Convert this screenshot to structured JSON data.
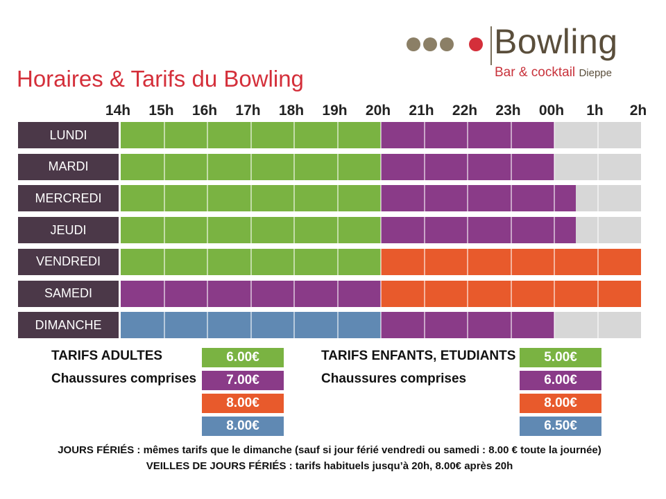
{
  "logo": {
    "word": "Bowling",
    "subtitle": "Bar & cocktail",
    "city": "Dieppe",
    "dot_colors": [
      "#8b7f66",
      "#8b7f66",
      "#8b7f66",
      "#d42f3a"
    ]
  },
  "title": "Horaires & Tarifs du Bowling",
  "hours": [
    "14h",
    "15h",
    "16h",
    "17h",
    "18h",
    "19h",
    "20h",
    "21h",
    "22h",
    "23h",
    "00h",
    "1h",
    "2h"
  ],
  "colors": {
    "green": "#7ab342",
    "purple": "#8a3b88",
    "orange": "#e85a2c",
    "blue": "#6089b3",
    "grey": "#d7d7d7",
    "day_bg": "#4b3848"
  },
  "schedule": [
    {
      "day": "LUNDI",
      "segments": [
        {
          "from": 14,
          "to": 20,
          "color": "green"
        },
        {
          "from": 20,
          "to": 24,
          "color": "purple"
        },
        {
          "from": 24,
          "to": 26,
          "color": "grey"
        }
      ]
    },
    {
      "day": "MARDI",
      "segments": [
        {
          "from": 14,
          "to": 20,
          "color": "green"
        },
        {
          "from": 20,
          "to": 24,
          "color": "purple"
        },
        {
          "from": 24,
          "to": 26,
          "color": "grey"
        }
      ]
    },
    {
      "day": "MERCREDI",
      "segments": [
        {
          "from": 14,
          "to": 20,
          "color": "green"
        },
        {
          "from": 20,
          "to": 24.5,
          "color": "purple"
        },
        {
          "from": 24.5,
          "to": 26,
          "color": "grey"
        }
      ]
    },
    {
      "day": "JEUDI",
      "segments": [
        {
          "from": 14,
          "to": 20,
          "color": "green"
        },
        {
          "from": 20,
          "to": 24.5,
          "color": "purple"
        },
        {
          "from": 24.5,
          "to": 26,
          "color": "grey"
        }
      ]
    },
    {
      "day": "VENDREDI",
      "segments": [
        {
          "from": 14,
          "to": 20,
          "color": "green"
        },
        {
          "from": 20,
          "to": 26,
          "color": "orange"
        }
      ]
    },
    {
      "day": "SAMEDI",
      "segments": [
        {
          "from": 14,
          "to": 20,
          "color": "purple"
        },
        {
          "from": 20,
          "to": 26,
          "color": "orange"
        }
      ]
    },
    {
      "day": "DIMANCHE",
      "segments": [
        {
          "from": 14,
          "to": 20,
          "color": "blue"
        },
        {
          "from": 20,
          "to": 24,
          "color": "purple"
        },
        {
          "from": 24,
          "to": 26,
          "color": "grey"
        }
      ]
    }
  ],
  "tarifs": {
    "adultes": {
      "label": "TARIFS ADULTES",
      "sublabel": "Chaussures comprises",
      "prices": [
        {
          "value": "6.00€",
          "color": "green"
        },
        {
          "value": "7.00€",
          "color": "purple"
        },
        {
          "value": "8.00€",
          "color": "orange"
        },
        {
          "value": "8.00€",
          "color": "blue"
        }
      ]
    },
    "enfants": {
      "label": "TARIFS ENFANTS, ETUDIANTS",
      "sublabel": "Chaussures comprises",
      "prices": [
        {
          "value": "5.00€",
          "color": "green"
        },
        {
          "value": "6.00€",
          "color": "purple"
        },
        {
          "value": "8.00€",
          "color": "orange"
        },
        {
          "value": "6.50€",
          "color": "blue"
        }
      ]
    }
  },
  "notes": [
    "JOURS FÉRIÉS : mêmes tarifs que le dimanche (sauf si jour férié vendredi ou samedi : 8.00 € toute la journée)",
    "VEILLES DE JOURS FÉRIÉS : tarifs habituels jusqu’à 20h, 8.00€ après 20h"
  ]
}
